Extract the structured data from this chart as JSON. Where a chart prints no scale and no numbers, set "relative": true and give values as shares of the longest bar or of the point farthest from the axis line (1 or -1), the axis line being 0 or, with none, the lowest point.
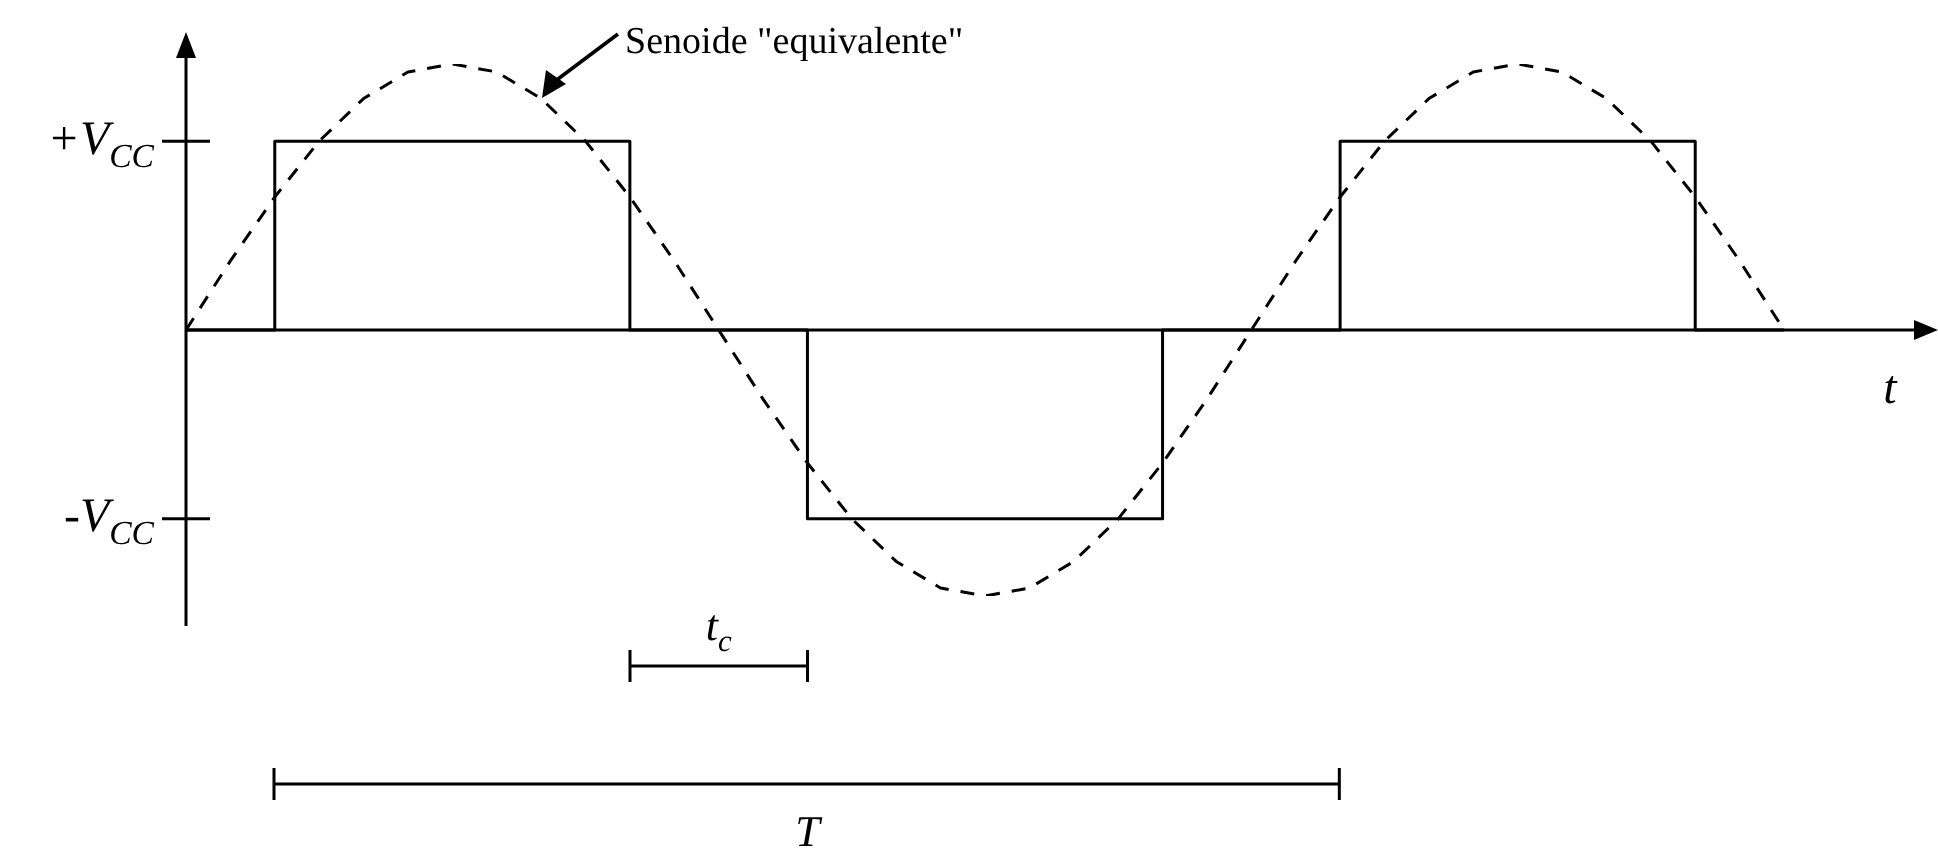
{
  "chart_data": {
    "type": "line",
    "xlabel": "t",
    "relative": true,
    "categories": [
      null,
      null,
      null,
      null,
      null,
      null,
      null,
      null,
      null,
      null,
      null,
      null,
      null,
      null,
      null,
      null,
      null,
      null,
      null,
      null,
      null,
      null,
      null,
      null,
      null,
      null,
      null,
      null,
      null,
      null,
      null,
      null,
      null,
      null,
      null,
      null,
      null
    ],
    "legend": "top",
    "series": [
      {
        "type": "step",
        "color": "#000000",
        "line_style": "solid",
        "values": [
          0,
          0,
          0.71,
          0.71,
          0.71,
          0.71,
          0.71,
          0.71,
          0.71,
          0.71,
          0,
          0,
          0,
          0,
          -0.71,
          -0.71,
          -0.71,
          -0.71,
          -0.71,
          -0.71,
          -0.71,
          -0.71,
          0,
          0,
          0,
          0,
          0.71,
          0.71,
          0.71,
          0.71,
          0.71,
          0.71,
          0.71,
          0.71,
          0,
          0,
          0
        ]
      },
      {
        "name": "Senoide \"equivalente\"",
        "color": "#000000",
        "line_style": "dashed",
        "values": [
          0,
          0.26,
          0.5,
          0.71,
          0.87,
          0.97,
          1,
          0.97,
          0.87,
          0.71,
          0.5,
          0.26,
          0,
          -0.26,
          -0.5,
          -0.71,
          -0.87,
          -0.97,
          -1,
          -0.97,
          -0.87,
          -0.71,
          -0.5,
          -0.26,
          0,
          0.26,
          0.5,
          0.71,
          0.87,
          0.97,
          1,
          0.97,
          0.87,
          0.71,
          0.5,
          0.26,
          0
        ]
      }
    ],
    "annotations": [
      "+V$_{CC}$",
      "-V$_{CC}$",
      "t$_{c}$",
      "T"
    ]
  }
}
